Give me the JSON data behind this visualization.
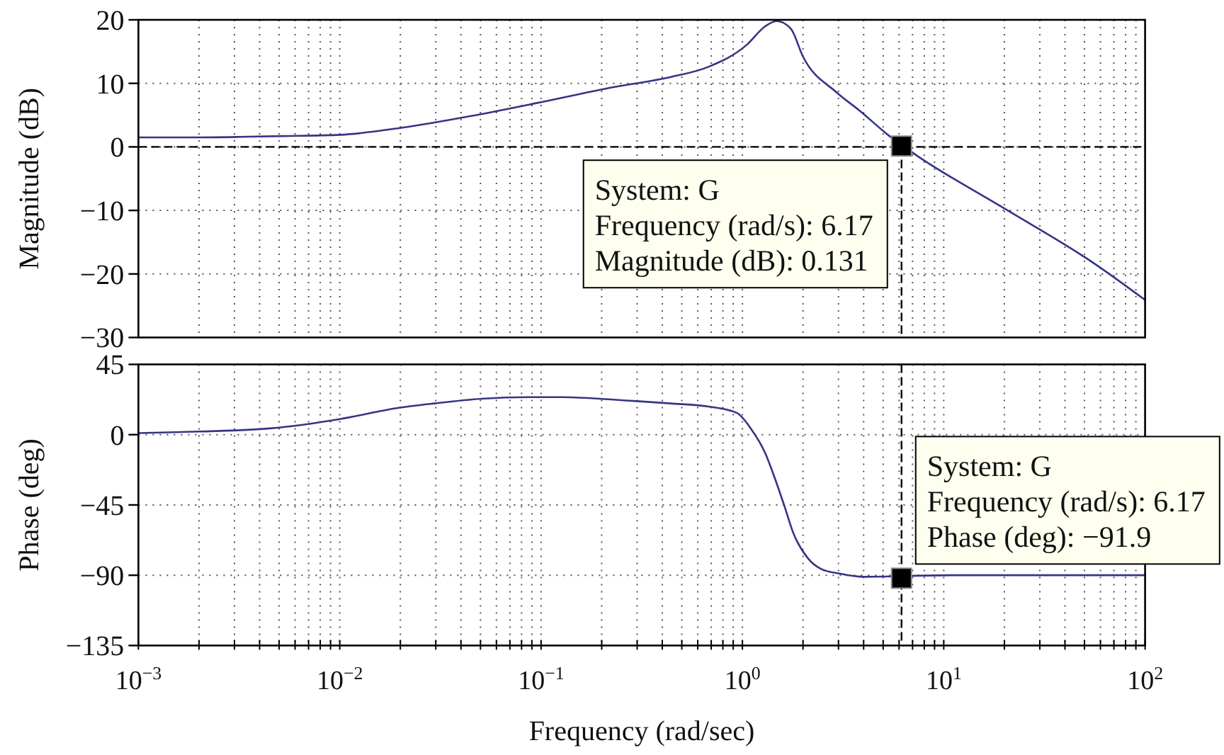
{
  "chart_data": [
    {
      "type": "line",
      "ylabel": "Magnitude (dB)",
      "log": "x",
      "grid": true,
      "tick_labels": "y",
      "xlim": [
        0.001,
        100
      ],
      "xticks": [
        {
          "value": 0.001,
          "label": null
        },
        {
          "value": 0.002,
          "label": null
        },
        {
          "value": 0.003,
          "label": null
        },
        {
          "value": 0.004,
          "label": null
        },
        {
          "value": 0.005,
          "label": null
        },
        {
          "value": 0.006,
          "label": null
        },
        {
          "value": 0.007,
          "label": null
        },
        {
          "value": 0.008,
          "label": null
        },
        {
          "value": 0.009,
          "label": null
        },
        {
          "value": 0.01,
          "label": null
        },
        {
          "value": 0.02,
          "label": null
        },
        {
          "value": 0.03,
          "label": null
        },
        {
          "value": 0.04,
          "label": null
        },
        {
          "value": 0.05,
          "label": null
        },
        {
          "value": 0.06,
          "label": null
        },
        {
          "value": 0.07,
          "label": null
        },
        {
          "value": 0.08,
          "label": null
        },
        {
          "value": 0.09,
          "label": null
        },
        {
          "value": 0.1,
          "label": null
        },
        {
          "value": 0.2,
          "label": null
        },
        {
          "value": 0.3,
          "label": null
        },
        {
          "value": 0.4,
          "label": null
        },
        {
          "value": 0.5,
          "label": null
        },
        {
          "value": 0.6,
          "label": null
        },
        {
          "value": 0.7,
          "label": null
        },
        {
          "value": 0.8,
          "label": null
        },
        {
          "value": 0.9,
          "label": null
        },
        {
          "value": 1,
          "label": null
        },
        {
          "value": 2,
          "label": null
        },
        {
          "value": 3,
          "label": null
        },
        {
          "value": 4,
          "label": null
        },
        {
          "value": 5,
          "label": null
        },
        {
          "value": 6,
          "label": null
        },
        {
          "value": 7,
          "label": null
        },
        {
          "value": 8,
          "label": null
        },
        {
          "value": 9,
          "label": null
        },
        {
          "value": 10,
          "label": null
        },
        {
          "value": 20,
          "label": null
        },
        {
          "value": 30,
          "label": null
        },
        {
          "value": 40,
          "label": null
        },
        {
          "value": 50,
          "label": null
        },
        {
          "value": 60,
          "label": null
        },
        {
          "value": 70,
          "label": null
        },
        {
          "value": 80,
          "label": null
        },
        {
          "value": 90,
          "label": null
        },
        {
          "value": 100,
          "label": null
        }
      ],
      "ylim": [
        -30,
        20
      ],
      "yticks": [
        {
          "value": -30,
          "label": "−30"
        },
        {
          "value": -20,
          "label": "−20"
        },
        {
          "value": -10,
          "label": "−10"
        },
        0,
        10,
        20
      ],
      "series": [
        {
          "color": "#353585",
          "x": [
            0.001,
            0.002,
            0.0035,
            0.00525,
            0.01,
            0.0202,
            0.0455,
            0.102,
            0.229,
            0.44,
            0.678,
            1.045,
            1.3,
            1.48,
            1.74,
            2.0,
            2.93,
            3.82,
            5.28,
            7.3,
            19.3,
            56.8,
            100
          ],
          "values": [
            1.5,
            1.5,
            1.6,
            1.7,
            1.9,
            3.0,
            4.9,
            7.1,
            9.4,
            11.0,
            12.6,
            16.0,
            19.0,
            19.8,
            18.6,
            14.2,
            8.6,
            5.7,
            1.9,
            -1.3,
            -9.4,
            -18.5,
            -24.1
          ]
        },
        {
          "type": "scatter",
          "color": "#000000",
          "marker": "square",
          "x": [
            6.17
          ],
          "values": [
            0.131
          ]
        }
      ],
      "ref_lines": [
        {
          "axis": "y",
          "value": 0,
          "color": "#000000",
          "line_style": "dashed"
        },
        {
          "axis": "x",
          "value": 6.17,
          "color": "#000000",
          "line_style": "dashed"
        }
      ],
      "annotations": [
        {
          "text": "System: G\nFrequency (rad/s): 6.17\nMagnitude (dB): 0.131",
          "x": 6.17,
          "y": 0.131
        }
      ]
    },
    {
      "type": "line",
      "ylabel": "Phase (deg)",
      "xlabel": "Frequency (rad/sec)",
      "log": "x",
      "grid": true,
      "xlim": [
        0.001,
        100
      ],
      "xticks": [
        {
          "value": 0.001,
          "label": "10$^{−3}$"
        },
        {
          "value": 0.002,
          "label": null
        },
        {
          "value": 0.003,
          "label": null
        },
        {
          "value": 0.004,
          "label": null
        },
        {
          "value": 0.005,
          "label": null
        },
        {
          "value": 0.006,
          "label": null
        },
        {
          "value": 0.007,
          "label": null
        },
        {
          "value": 0.008,
          "label": null
        },
        {
          "value": 0.009,
          "label": null
        },
        {
          "value": 0.01,
          "label": "10$^{−2}$"
        },
        {
          "value": 0.02,
          "label": null
        },
        {
          "value": 0.03,
          "label": null
        },
        {
          "value": 0.04,
          "label": null
        },
        {
          "value": 0.05,
          "label": null
        },
        {
          "value": 0.06,
          "label": null
        },
        {
          "value": 0.07,
          "label": null
        },
        {
          "value": 0.08,
          "label": null
        },
        {
          "value": 0.09,
          "label": null
        },
        {
          "value": 0.1,
          "label": "10$^{−1}$"
        },
        {
          "value": 0.2,
          "label": null
        },
        {
          "value": 0.3,
          "label": null
        },
        {
          "value": 0.4,
          "label": null
        },
        {
          "value": 0.5,
          "label": null
        },
        {
          "value": 0.6,
          "label": null
        },
        {
          "value": 0.7,
          "label": null
        },
        {
          "value": 0.8,
          "label": null
        },
        {
          "value": 0.9,
          "label": null
        },
        {
          "value": 1,
          "label": "10$^{0}$"
        },
        {
          "value": 2,
          "label": null
        },
        {
          "value": 3,
          "label": null
        },
        {
          "value": 4,
          "label": null
        },
        {
          "value": 5,
          "label": null
        },
        {
          "value": 6,
          "label": null
        },
        {
          "value": 7,
          "label": null
        },
        {
          "value": 8,
          "label": null
        },
        {
          "value": 9,
          "label": null
        },
        {
          "value": 10,
          "label": "10$^{1}$"
        },
        {
          "value": 20,
          "label": null
        },
        {
          "value": 30,
          "label": null
        },
        {
          "value": 40,
          "label": null
        },
        {
          "value": 50,
          "label": null
        },
        {
          "value": 60,
          "label": null
        },
        {
          "value": 70,
          "label": null
        },
        {
          "value": 80,
          "label": null
        },
        {
          "value": 90,
          "label": null
        },
        {
          "value": 100,
          "label": "10$^{2}$"
        }
      ],
      "ylim": [
        -135,
        45
      ],
      "yticks": [
        {
          "value": -135,
          "label": "−135"
        },
        {
          "value": -90,
          "label": "−90"
        },
        {
          "value": -45,
          "label": "−45"
        },
        0,
        45
      ],
      "series": [
        {
          "color": "#353585",
          "x": [
            0.001,
            0.002,
            0.0045,
            0.01,
            0.0192,
            0.0296,
            0.0507,
            0.087,
            0.127,
            0.195,
            0.256,
            0.44,
            0.678,
            0.937,
            1.1,
            1.3,
            1.45,
            1.61,
            1.79,
            2.11,
            2.46,
            3.05,
            4.0,
            11.2,
            33.1,
            100
          ],
          "values": [
            1,
            2,
            4,
            10,
            17,
            20,
            23,
            24,
            24,
            23,
            22,
            20,
            18,
            14,
            4,
            -12,
            -28,
            -45,
            -63,
            -79,
            -86,
            -89,
            -91,
            -90,
            -90,
            -90
          ]
        },
        {
          "type": "scatter",
          "color": "#000000",
          "marker": "square",
          "x": [
            6.17
          ],
          "values": [
            -91.9
          ]
        }
      ],
      "ref_lines": [
        {
          "axis": "x",
          "value": 6.17,
          "color": "#000000",
          "line_style": "dashed"
        }
      ],
      "annotations": [
        {
          "text": "System: G\nFrequency (rad/s): 6.17\nPhase (deg): −91.9",
          "x": 6.17,
          "y": -91.9
        }
      ]
    }
  ]
}
